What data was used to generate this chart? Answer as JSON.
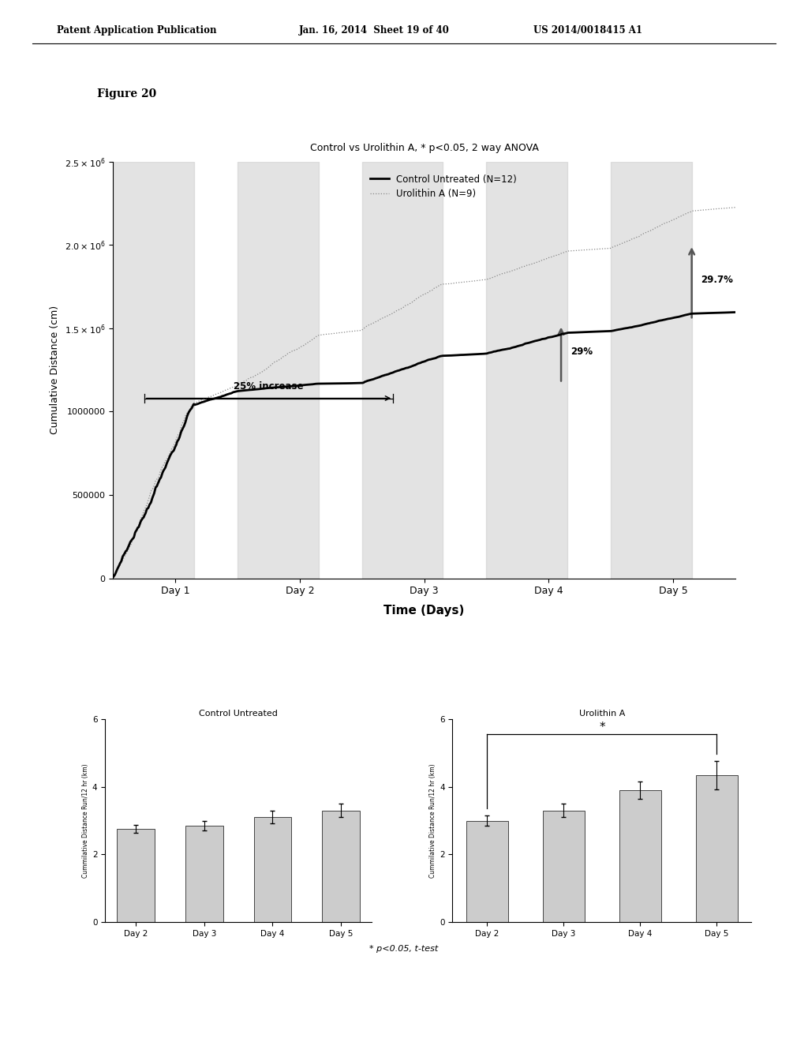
{
  "header_left": "Patent Application Publication",
  "header_mid": "Jan. 16, 2014  Sheet 19 of 40",
  "header_right": "US 2014/0018415 A1",
  "figure_label": "Figure 20",
  "main_title": "Control vs Urolithin A, * p<0.05, 2 way ANOVA",
  "main_ylabel": "Cumulative Distance (cm)",
  "main_xlabel": "Time (Days)",
  "main_xtick_labels": [
    "Day 1",
    "Day 2",
    "Day 3",
    "Day 4",
    "Day 5"
  ],
  "legend_control": "Control Untreated (N=12)",
  "legend_urolithin": "Urolithin A (N=9)",
  "annotation_25": "25% increase",
  "annotation_29": "29%",
  "annotation_297": "29.7%",
  "bar1_title": "Control Untreated",
  "bar2_title": "Urolithin A",
  "bar1_categories": [
    "Day 2",
    "Day 3",
    "Day 4",
    "Day 5"
  ],
  "bar2_categories": [
    "Day 2",
    "Day 3",
    "Day 4",
    "Day 5"
  ],
  "bar1_values": [
    2.75,
    2.85,
    3.1,
    3.3
  ],
  "bar2_values": [
    3.0,
    3.3,
    3.9,
    4.35
  ],
  "bar1_errors": [
    0.12,
    0.13,
    0.18,
    0.2
  ],
  "bar2_errors": [
    0.15,
    0.2,
    0.25,
    0.42
  ],
  "bar_ylabel": "Cummilative Distance Run/12 hr (km)",
  "bar_ylim": [
    0,
    6
  ],
  "bar_yticks": [
    0,
    2,
    4,
    6
  ],
  "significance_note": "* p<0.05, t-test",
  "bg_color": "#ffffff",
  "bar_color": "#cccccc",
  "control_line_color": "#000000",
  "urolithin_line_color": "#888888",
  "shade_color": "#cccccc",
  "shade_alpha": 0.55
}
